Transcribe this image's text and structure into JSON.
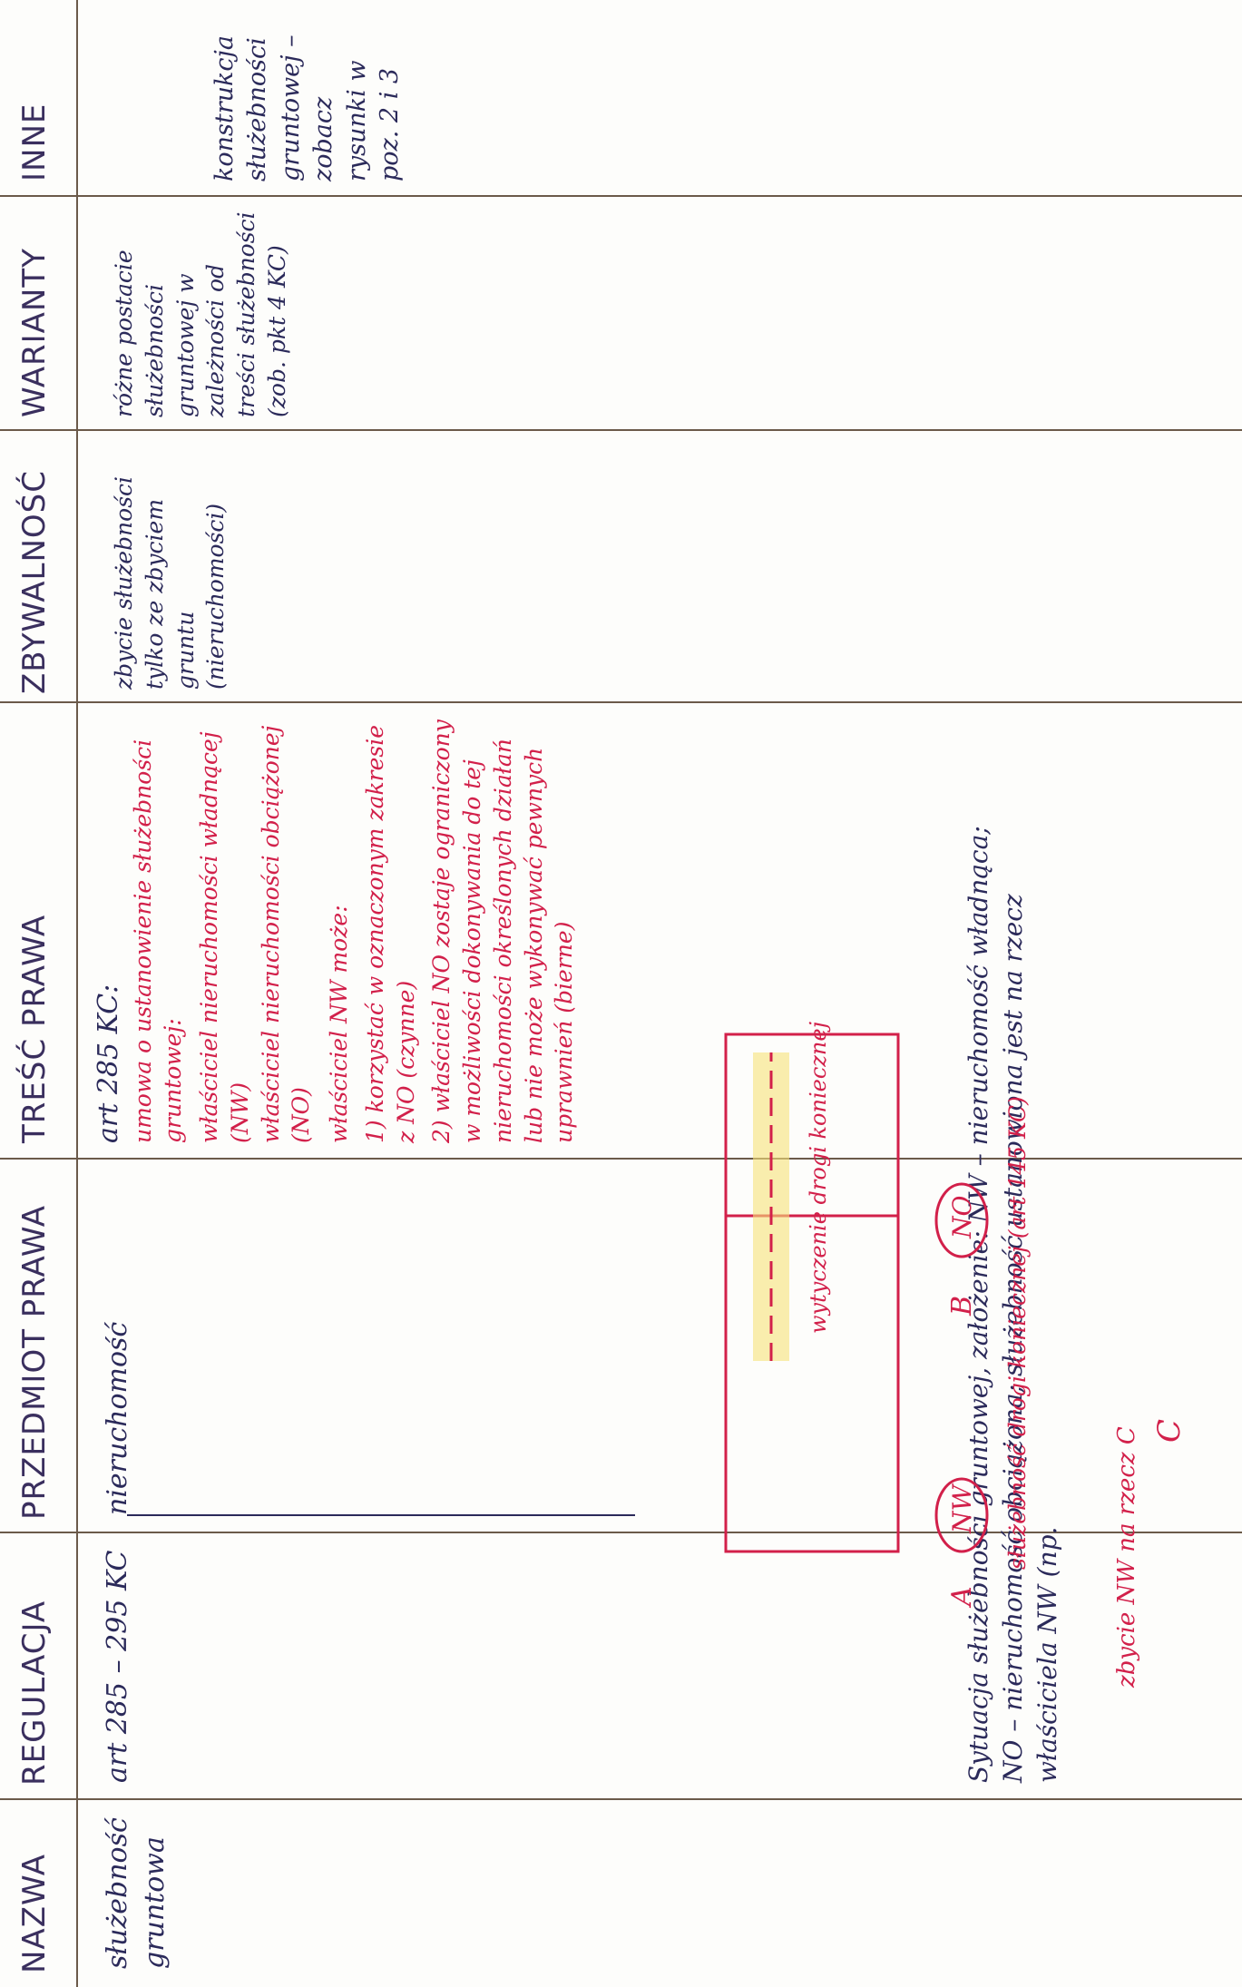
{
  "header": [
    "NAZWA",
    "REGULACJA",
    "PRZEDMIOT PRAWA",
    "TREŚĆ PRAWA",
    "ZBYWALNOŚĆ",
    "WARIANTY",
    "INNE"
  ],
  "row": {
    "nazwa": "służebność gruntowa",
    "regulacja": "art 285 – 295 KC",
    "przedmiot": "nieruchomość",
    "tresc": [
      "art 285 KC:",
      "umowa o ustanowienie służebności gruntowej:",
      "właściciel nieruchomości władnącej (NW)",
      "właściciel nieruchomości obciążonej (NO)",
      "właściciel NW może:",
      "1) korzystać w oznaczonym zakresie z NO (czynne)",
      "2) właściciel NO zostaje ograniczony w możliwości dokonywania do tej nieruchomości określonych działań lub nie może wykonywać pewnych uprawnień (bierne)"
    ],
    "zbywalnosc": "zbycie służebności tylko ze zbyciem gruntu (nieruchomości)",
    "warianty": "różne postacie służebności gruntowej w zależności od treści służebności (zob. pkt 4 KC)",
    "inne": "konstrukcja służebności gruntowej – zobacz rysunki w poz. 2 i 3"
  },
  "note": "Sytuacja służebności gruntowej, założenie: NW – nieruchomość władnąca; NO – nieruchomość obciążona; służebność ustanowiona jest na rzecz właściciela NW (np.",
  "diagram": {
    "a": "A",
    "b": "B",
    "nw": "NW",
    "no": "NO",
    "c": "C",
    "road": "służebność drogi koniecznej (art 145 KC)",
    "route": "wytyczenie drogi koniecznej",
    "sale": "zbycie NW na rzecz C"
  }
}
